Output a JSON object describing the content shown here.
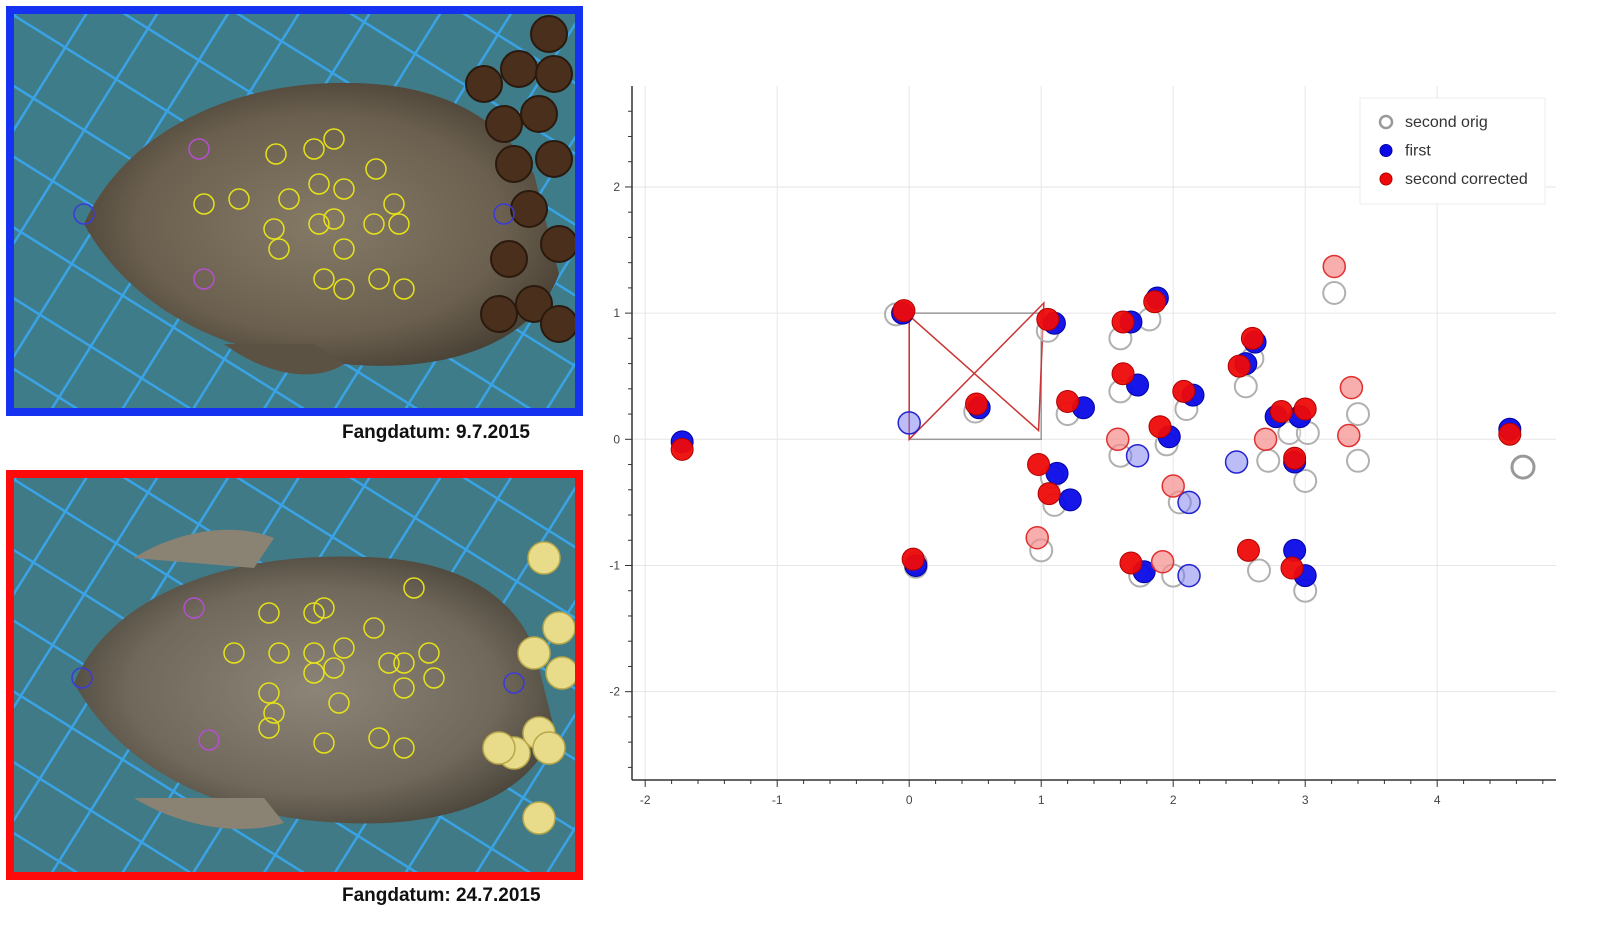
{
  "photos": {
    "top": {
      "caption": "Fangdatum: 9.7.2015",
      "frame_color": "#1432f0"
    },
    "bottom": {
      "caption": "Fangdatum: 24.7.2015",
      "frame_color": "#ff0a0a"
    }
  },
  "chart_data": {
    "type": "scatter",
    "title": "",
    "xlabel": "",
    "ylabel": "",
    "xlim": [
      -2.1,
      4.9
    ],
    "ylim": [
      -2.7,
      2.8
    ],
    "xticks": [
      -2,
      -1,
      0,
      1,
      2,
      3,
      4
    ],
    "yticks": [
      -2,
      -1,
      0,
      1,
      2
    ],
    "grid": true,
    "legend_position": "top-right",
    "series": [
      {
        "name": "second orig",
        "style": "hollow-gray",
        "color": "#999999",
        "points": [
          [
            -0.1,
            0.99
          ],
          [
            0.05,
            -1.01
          ],
          [
            1.05,
            0.86
          ],
          [
            1.2,
            0.2
          ],
          [
            1.08,
            -0.3
          ],
          [
            1.1,
            -0.52
          ],
          [
            0.05,
            -0.98
          ],
          [
            1.0,
            -0.88
          ],
          [
            1.6,
            0.8
          ],
          [
            1.6,
            0.38
          ],
          [
            1.6,
            -0.13
          ],
          [
            1.82,
            0.95
          ],
          [
            1.75,
            -1.08
          ],
          [
            1.95,
            -0.04
          ],
          [
            2.0,
            -1.08
          ],
          [
            2.05,
            -0.5
          ],
          [
            2.1,
            0.24
          ],
          [
            2.55,
            0.42
          ],
          [
            2.6,
            0.64
          ],
          [
            2.72,
            -0.17
          ],
          [
            2.88,
            0.05
          ],
          [
            3.02,
            0.05
          ],
          [
            3.0,
            -0.33
          ],
          [
            3.0,
            -1.2
          ],
          [
            2.65,
            -1.04
          ],
          [
            3.22,
            1.16
          ],
          [
            3.4,
            0.2
          ],
          [
            3.4,
            -0.17
          ],
          [
            0.5,
            0.22
          ],
          [
            4.65,
            -0.22
          ]
        ]
      },
      {
        "name": "first",
        "style": "filled-blue",
        "color": "#0a0ae8",
        "points": [
          [
            -1.72,
            -0.02
          ],
          [
            -0.05,
            1.0
          ],
          [
            0.05,
            -1.0
          ],
          [
            0.53,
            0.25
          ],
          [
            1.1,
            0.92
          ],
          [
            1.32,
            0.25
          ],
          [
            1.12,
            -0.27
          ],
          [
            1.22,
            -0.48
          ],
          [
            1.68,
            0.93
          ],
          [
            1.88,
            1.12
          ],
          [
            1.73,
            0.43
          ],
          [
            1.97,
            0.02
          ],
          [
            2.15,
            0.35
          ],
          [
            1.78,
            -1.05
          ],
          [
            2.62,
            0.77
          ],
          [
            2.55,
            0.6
          ],
          [
            2.78,
            0.18
          ],
          [
            2.96,
            0.18
          ],
          [
            2.92,
            -0.18
          ],
          [
            2.92,
            -0.88
          ],
          [
            3.0,
            -1.08
          ],
          [
            4.55,
            0.08
          ]
        ]
      },
      {
        "name": "first",
        "style": "faded-blue",
        "color": "#7a7af0",
        "points": [
          [
            0.0,
            0.13
          ],
          [
            1.73,
            -0.13
          ],
          [
            2.12,
            -0.5
          ],
          [
            2.12,
            -1.08
          ],
          [
            2.48,
            -0.18
          ]
        ]
      },
      {
        "name": "second corrected",
        "style": "filled-red",
        "color": "#ee0a0a",
        "points": [
          [
            -1.72,
            -0.08
          ],
          [
            -0.04,
            1.02
          ],
          [
            0.03,
            -0.95
          ],
          [
            0.51,
            0.28
          ],
          [
            1.05,
            0.95
          ],
          [
            1.2,
            0.3
          ],
          [
            0.98,
            -0.2
          ],
          [
            1.06,
            -0.43
          ],
          [
            1.62,
            0.93
          ],
          [
            1.86,
            1.09
          ],
          [
            1.62,
            0.52
          ],
          [
            1.9,
            0.1
          ],
          [
            2.08,
            0.38
          ],
          [
            1.68,
            -0.98
          ],
          [
            2.6,
            0.8
          ],
          [
            2.5,
            0.58
          ],
          [
            2.82,
            0.22
          ],
          [
            3.0,
            0.24
          ],
          [
            2.92,
            -0.15
          ],
          [
            2.57,
            -0.88
          ],
          [
            2.9,
            -1.02
          ],
          [
            4.55,
            0.04
          ]
        ]
      },
      {
        "name": "second corrected",
        "style": "faded-red",
        "color": "#f78b8b",
        "points": [
          [
            0.97,
            -0.78
          ],
          [
            1.58,
            0.0
          ],
          [
            1.92,
            -0.97
          ],
          [
            2.0,
            -0.37
          ],
          [
            2.7,
            0.0
          ],
          [
            3.22,
            1.37
          ],
          [
            3.35,
            0.41
          ],
          [
            3.33,
            0.03
          ]
        ]
      }
    ],
    "box_original": {
      "x": [
        0,
        1
      ],
      "y": [
        0,
        1
      ],
      "color": "#999999"
    },
    "box_corrected": {
      "points": [
        [
          0.0,
          0.0
        ],
        [
          1.02,
          1.08
        ],
        [
          0.98,
          0.07
        ],
        [
          0.0,
          0.98
        ]
      ],
      "color": "#cc3333"
    }
  }
}
